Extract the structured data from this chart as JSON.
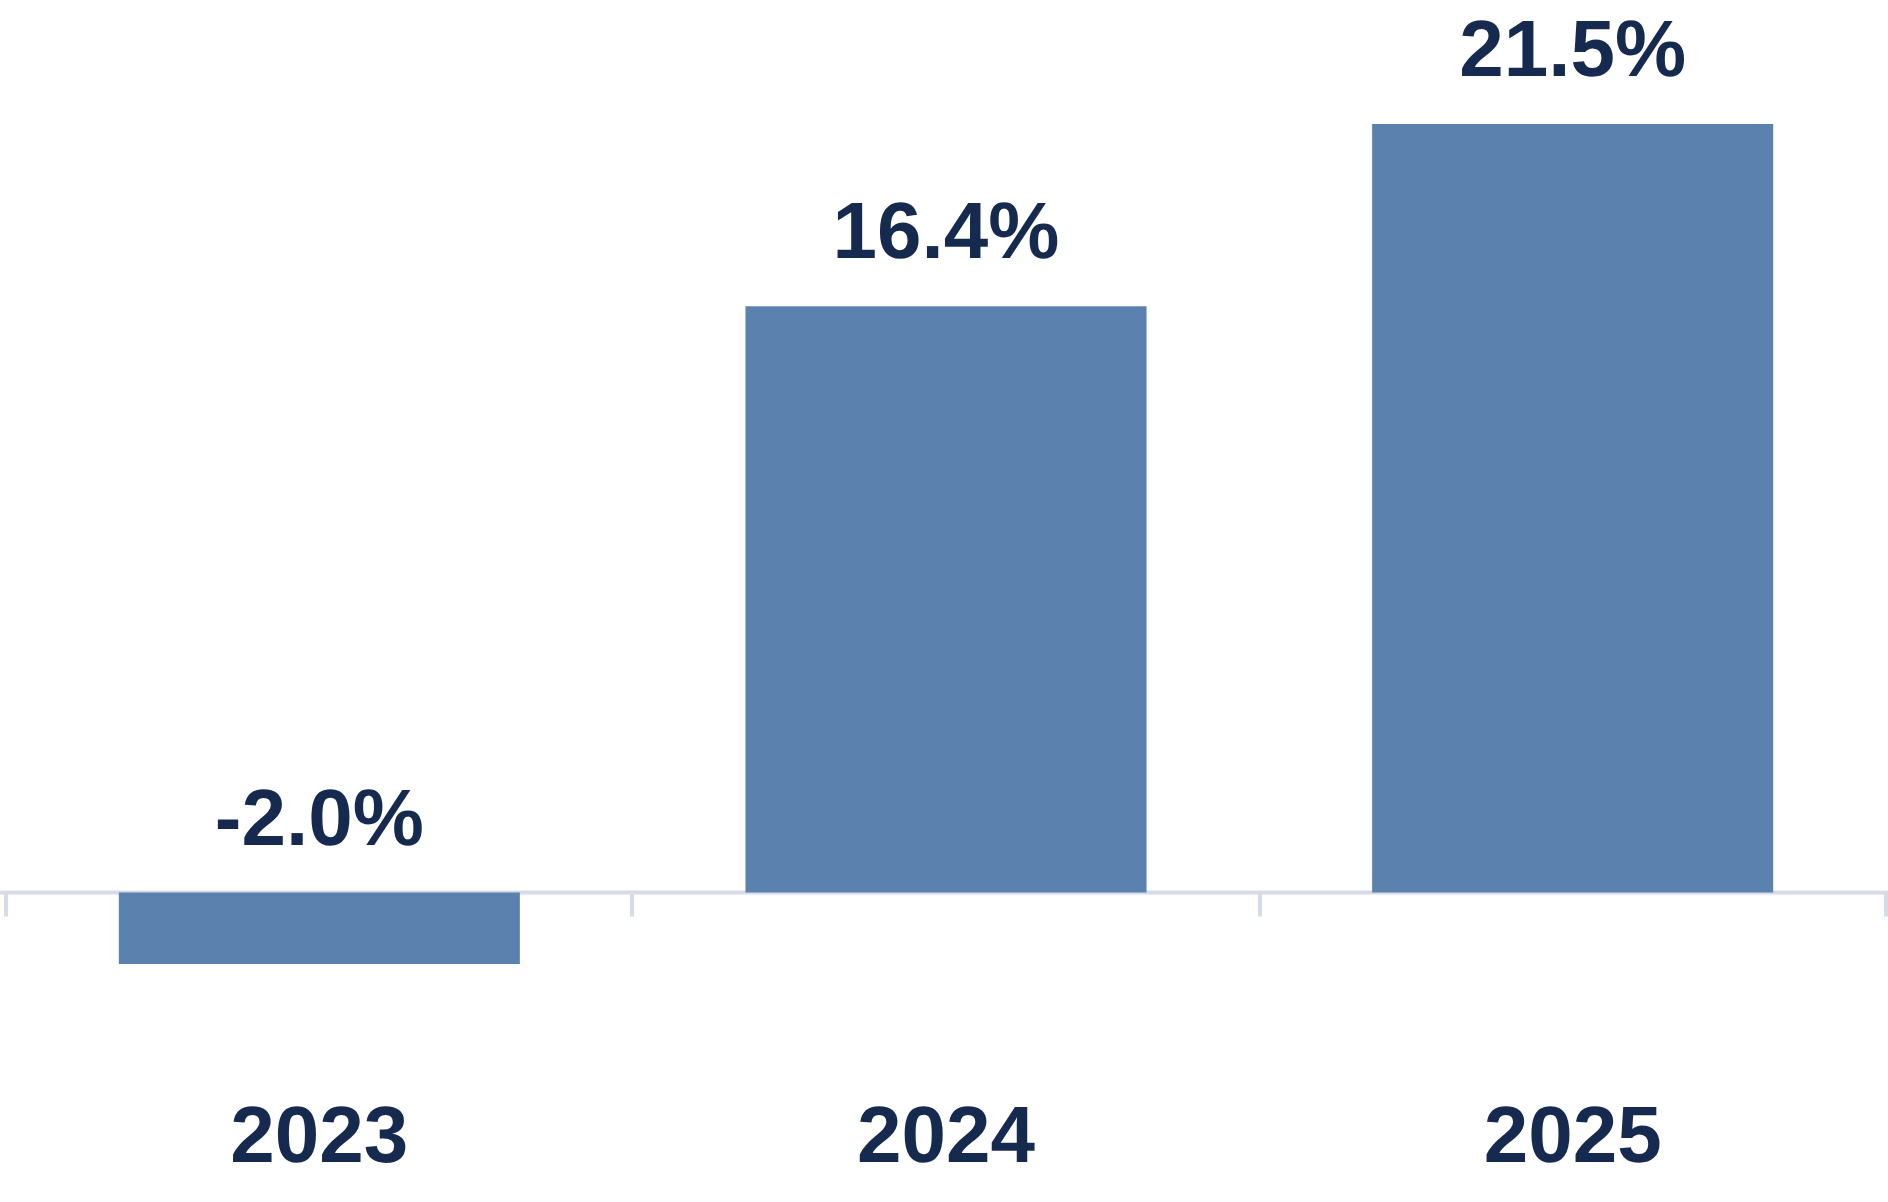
{
  "chart_data": {
    "type": "bar",
    "categories": [
      "2023",
      "2024",
      "2025"
    ],
    "values": [
      -2.0,
      16.4,
      21.5
    ],
    "color": "#5b82ae",
    "value_labels": [
      "-2.0%",
      "16.4%",
      "21.5%"
    ]
  }
}
